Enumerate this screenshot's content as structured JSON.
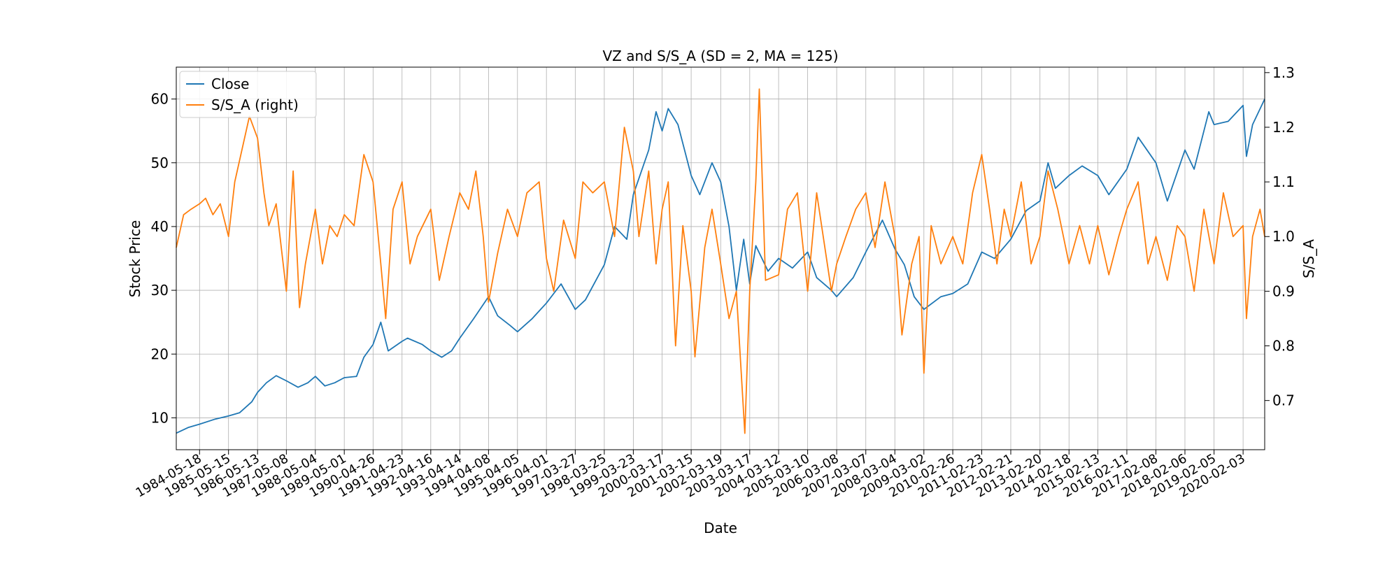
{
  "chart_data": {
    "type": "line",
    "title": "VZ and S/S_A (SD = 2, MA = 125)",
    "xlabel": "Date",
    "ylabel_left": "Stock Price",
    "ylabel_right": "S/S_A",
    "grid": true,
    "legend_position": "top-left",
    "x_range": [
      "1983-08-01",
      "2020-10-30"
    ],
    "ylim_left": [
      5,
      65
    ],
    "ylim_right": [
      0.61,
      1.31
    ],
    "x_tick_labels": [
      "1984-05-18",
      "1985-05-15",
      "1986-05-13",
      "1987-05-08",
      "1988-05-04",
      "1989-05-01",
      "1990-04-26",
      "1991-04-23",
      "1992-04-16",
      "1993-04-14",
      "1994-04-08",
      "1995-04-05",
      "1996-04-01",
      "1997-03-27",
      "1998-03-25",
      "1999-03-23",
      "2000-03-17",
      "2001-03-15",
      "2002-03-19",
      "2003-03-17",
      "2004-03-12",
      "2005-03-10",
      "2006-03-08",
      "2007-03-07",
      "2008-03-04",
      "2009-03-02",
      "2010-02-26",
      "2011-02-23",
      "2012-02-21",
      "2013-02-20",
      "2014-02-18",
      "2015-02-13",
      "2016-02-11",
      "2017-02-08",
      "2018-02-06",
      "2019-02-05",
      "2020-02-03"
    ],
    "y_ticks_left": [
      "10",
      "20",
      "30",
      "40",
      "50",
      "60"
    ],
    "y_ticks_right": [
      "0.7",
      "0.8",
      "0.9",
      "1.0",
      "1.1",
      "1.2",
      "1.3"
    ],
    "series": [
      {
        "name": "Close",
        "axis": "left",
        "color": "#1f77b4",
        "points": [
          [
            "1983-08-01",
            7.6
          ],
          [
            "1984-01-01",
            8.5
          ],
          [
            "1984-05-18",
            9.0
          ],
          [
            "1984-12-01",
            9.8
          ],
          [
            "1985-05-15",
            10.3
          ],
          [
            "1985-10-01",
            10.8
          ],
          [
            "1986-03-01",
            12.5
          ],
          [
            "1986-05-13",
            14.0
          ],
          [
            "1986-09-01",
            15.5
          ],
          [
            "1987-01-01",
            16.6
          ],
          [
            "1987-05-08",
            15.8
          ],
          [
            "1987-10-01",
            14.8
          ],
          [
            "1988-02-01",
            15.5
          ],
          [
            "1988-05-04",
            16.5
          ],
          [
            "1988-09-01",
            15.0
          ],
          [
            "1989-01-01",
            15.5
          ],
          [
            "1989-05-01",
            16.3
          ],
          [
            "1989-10-01",
            16.5
          ],
          [
            "1990-01-01",
            19.5
          ],
          [
            "1990-04-26",
            21.5
          ],
          [
            "1990-08-01",
            25.0
          ],
          [
            "1990-11-01",
            20.5
          ],
          [
            "1991-04-23",
            22.0
          ],
          [
            "1991-07-01",
            22.5
          ],
          [
            "1992-01-01",
            21.5
          ],
          [
            "1992-04-16",
            20.5
          ],
          [
            "1992-09-01",
            19.5
          ],
          [
            "1993-01-01",
            20.5
          ],
          [
            "1993-04-14",
            22.5
          ],
          [
            "1993-10-01",
            25.5
          ],
          [
            "1994-04-08",
            29.0
          ],
          [
            "1994-08-01",
            26.0
          ],
          [
            "1995-01-01",
            24.5
          ],
          [
            "1995-04-05",
            23.5
          ],
          [
            "1995-10-01",
            25.5
          ],
          [
            "1996-04-01",
            28.0
          ],
          [
            "1996-10-01",
            31.0
          ],
          [
            "1997-03-27",
            27.0
          ],
          [
            "1997-08-01",
            28.5
          ],
          [
            "1998-03-25",
            34.0
          ],
          [
            "1998-08-01",
            40.0
          ],
          [
            "1999-01-01",
            38.0
          ],
          [
            "1999-03-23",
            45.0
          ],
          [
            "1999-10-01",
            52.0
          ],
          [
            "2000-01-01",
            58.0
          ],
          [
            "2000-03-17",
            55.0
          ],
          [
            "2000-06-01",
            58.5
          ],
          [
            "2000-10-01",
            56.0
          ],
          [
            "2001-03-15",
            48.0
          ],
          [
            "2001-07-01",
            45.0
          ],
          [
            "2001-12-01",
            50.0
          ],
          [
            "2002-03-19",
            47.0
          ],
          [
            "2002-07-01",
            40.0
          ],
          [
            "2002-10-01",
            30.0
          ],
          [
            "2003-01-01",
            38.0
          ],
          [
            "2003-03-17",
            31.0
          ],
          [
            "2003-06-01",
            37.0
          ],
          [
            "2003-11-01",
            33.0
          ],
          [
            "2004-03-12",
            35.0
          ],
          [
            "2004-09-01",
            33.5
          ],
          [
            "2005-03-10",
            36.0
          ],
          [
            "2005-07-01",
            32.0
          ],
          [
            "2006-01-01",
            30.0
          ],
          [
            "2006-03-08",
            29.0
          ],
          [
            "2006-10-01",
            32.0
          ],
          [
            "2007-03-07",
            36.0
          ],
          [
            "2007-10-01",
            41.0
          ],
          [
            "2008-03-04",
            36.5
          ],
          [
            "2008-07-01",
            34.0
          ],
          [
            "2008-11-01",
            29.0
          ],
          [
            "2009-03-02",
            27.0
          ],
          [
            "2009-10-01",
            29.0
          ],
          [
            "2010-02-26",
            29.5
          ],
          [
            "2010-09-01",
            31.0
          ],
          [
            "2011-02-23",
            36.0
          ],
          [
            "2011-08-01",
            35.0
          ],
          [
            "2012-02-21",
            38.0
          ],
          [
            "2012-09-01",
            42.5
          ],
          [
            "2013-02-20",
            44.0
          ],
          [
            "2013-06-01",
            50.0
          ],
          [
            "2013-09-01",
            46.0
          ],
          [
            "2014-02-18",
            48.0
          ],
          [
            "2014-08-01",
            49.5
          ],
          [
            "2015-02-13",
            48.0
          ],
          [
            "2015-07-01",
            45.0
          ],
          [
            "2016-02-11",
            49.0
          ],
          [
            "2016-07-01",
            54.0
          ],
          [
            "2017-02-08",
            50.0
          ],
          [
            "2017-07-01",
            44.0
          ],
          [
            "2018-02-06",
            52.0
          ],
          [
            "2018-06-01",
            49.0
          ],
          [
            "2018-12-01",
            58.0
          ],
          [
            "2019-02-05",
            56.0
          ],
          [
            "2019-08-01",
            56.5
          ],
          [
            "2020-02-03",
            59.0
          ],
          [
            "2020-03-16",
            51.0
          ],
          [
            "2020-06-01",
            56.0
          ],
          [
            "2020-10-30",
            60.0
          ]
        ]
      },
      {
        "name": "S/S_A (right)",
        "axis": "right",
        "color": "#ff7f0e",
        "points": [
          [
            "1983-08-01",
            0.98
          ],
          [
            "1983-11-01",
            1.04
          ],
          [
            "1984-02-01",
            1.05
          ],
          [
            "1984-05-18",
            1.06
          ],
          [
            "1984-08-01",
            1.07
          ],
          [
            "1984-11-01",
            1.04
          ],
          [
            "1985-02-01",
            1.06
          ],
          [
            "1985-05-15",
            1.0
          ],
          [
            "1985-08-01",
            1.1
          ],
          [
            "1985-11-01",
            1.16
          ],
          [
            "1986-02-01",
            1.22
          ],
          [
            "1986-05-13",
            1.18
          ],
          [
            "1986-08-01",
            1.08
          ],
          [
            "1986-10-01",
            1.02
          ],
          [
            "1987-01-01",
            1.06
          ],
          [
            "1987-05-08",
            0.9
          ],
          [
            "1987-08-01",
            1.12
          ],
          [
            "1987-10-20",
            0.87
          ],
          [
            "1988-01-01",
            0.95
          ],
          [
            "1988-05-04",
            1.05
          ],
          [
            "1988-08-01",
            0.95
          ],
          [
            "1988-11-01",
            1.02
          ],
          [
            "1989-02-01",
            1.0
          ],
          [
            "1989-05-01",
            1.04
          ],
          [
            "1989-09-01",
            1.02
          ],
          [
            "1990-01-01",
            1.15
          ],
          [
            "1990-04-26",
            1.1
          ],
          [
            "1990-08-01",
            0.95
          ],
          [
            "1990-10-01",
            0.85
          ],
          [
            "1991-01-01",
            1.05
          ],
          [
            "1991-04-23",
            1.1
          ],
          [
            "1991-08-01",
            0.95
          ],
          [
            "1991-11-01",
            1.0
          ],
          [
            "1992-04-16",
            1.05
          ],
          [
            "1992-08-01",
            0.92
          ],
          [
            "1992-12-01",
            1.0
          ],
          [
            "1993-04-14",
            1.08
          ],
          [
            "1993-08-01",
            1.05
          ],
          [
            "1993-11-01",
            1.12
          ],
          [
            "1994-02-01",
            1.0
          ],
          [
            "1994-04-08",
            0.88
          ],
          [
            "1994-08-01",
            0.97
          ],
          [
            "1994-12-01",
            1.05
          ],
          [
            "1995-04-05",
            1.0
          ],
          [
            "1995-08-01",
            1.08
          ],
          [
            "1996-01-01",
            1.1
          ],
          [
            "1996-04-01",
            0.96
          ],
          [
            "1996-07-01",
            0.9
          ],
          [
            "1996-11-01",
            1.03
          ],
          [
            "1997-03-27",
            0.96
          ],
          [
            "1997-07-01",
            1.1
          ],
          [
            "1997-11-01",
            1.08
          ],
          [
            "1998-03-25",
            1.1
          ],
          [
            "1998-08-01",
            1.0
          ],
          [
            "1998-12-01",
            1.2
          ],
          [
            "1999-03-23",
            1.12
          ],
          [
            "1999-06-01",
            1.0
          ],
          [
            "1999-10-01",
            1.12
          ],
          [
            "2000-01-01",
            0.95
          ],
          [
            "2000-03-17",
            1.05
          ],
          [
            "2000-06-01",
            1.1
          ],
          [
            "2000-09-01",
            0.8
          ],
          [
            "2000-12-01",
            1.02
          ],
          [
            "2001-03-15",
            0.9
          ],
          [
            "2001-05-01",
            0.78
          ],
          [
            "2001-09-01",
            0.98
          ],
          [
            "2001-12-01",
            1.05
          ],
          [
            "2002-03-19",
            0.95
          ],
          [
            "2002-07-01",
            0.85
          ],
          [
            "2002-10-01",
            0.9
          ],
          [
            "2002-12-01",
            0.75
          ],
          [
            "2003-01-15",
            0.64
          ],
          [
            "2003-03-17",
            0.9
          ],
          [
            "2003-06-01",
            1.1
          ],
          [
            "2003-07-15",
            1.27
          ],
          [
            "2003-10-01",
            0.92
          ],
          [
            "2004-03-12",
            0.93
          ],
          [
            "2004-07-01",
            1.05
          ],
          [
            "2004-11-01",
            1.08
          ],
          [
            "2005-03-10",
            0.9
          ],
          [
            "2005-07-01",
            1.08
          ],
          [
            "2006-01-01",
            0.9
          ],
          [
            "2006-03-08",
            0.95
          ],
          [
            "2006-07-01",
            1.0
          ],
          [
            "2006-11-01",
            1.05
          ],
          [
            "2007-03-07",
            1.08
          ],
          [
            "2007-07-01",
            0.98
          ],
          [
            "2007-11-01",
            1.1
          ],
          [
            "2008-03-04",
            1.0
          ],
          [
            "2008-06-01",
            0.82
          ],
          [
            "2008-10-01",
            0.95
          ],
          [
            "2009-01-01",
            1.0
          ],
          [
            "2009-03-02",
            0.75
          ],
          [
            "2009-06-01",
            1.02
          ],
          [
            "2009-10-01",
            0.95
          ],
          [
            "2010-02-26",
            1.0
          ],
          [
            "2010-07-01",
            0.95
          ],
          [
            "2010-11-01",
            1.08
          ],
          [
            "2011-02-23",
            1.15
          ],
          [
            "2011-06-01",
            1.05
          ],
          [
            "2011-09-01",
            0.95
          ],
          [
            "2011-12-01",
            1.05
          ],
          [
            "2012-02-21",
            1.0
          ],
          [
            "2012-07-01",
            1.1
          ],
          [
            "2012-11-01",
            0.95
          ],
          [
            "2013-02-20",
            1.0
          ],
          [
            "2013-06-01",
            1.12
          ],
          [
            "2013-10-01",
            1.05
          ],
          [
            "2014-02-18",
            0.95
          ],
          [
            "2014-07-01",
            1.02
          ],
          [
            "2014-11-01",
            0.95
          ],
          [
            "2015-02-13",
            1.02
          ],
          [
            "2015-07-01",
            0.93
          ],
          [
            "2015-11-01",
            1.0
          ],
          [
            "2016-02-11",
            1.05
          ],
          [
            "2016-07-01",
            1.1
          ],
          [
            "2016-11-01",
            0.95
          ],
          [
            "2017-02-08",
            1.0
          ],
          [
            "2017-07-01",
            0.92
          ],
          [
            "2017-11-01",
            1.02
          ],
          [
            "2018-02-06",
            1.0
          ],
          [
            "2018-06-01",
            0.9
          ],
          [
            "2018-10-01",
            1.05
          ],
          [
            "2019-02-05",
            0.95
          ],
          [
            "2019-06-01",
            1.08
          ],
          [
            "2019-10-01",
            1.0
          ],
          [
            "2020-02-03",
            1.02
          ],
          [
            "2020-03-16",
            0.85
          ],
          [
            "2020-06-01",
            1.0
          ],
          [
            "2020-09-01",
            1.05
          ],
          [
            "2020-10-30",
            1.0
          ]
        ]
      }
    ]
  }
}
